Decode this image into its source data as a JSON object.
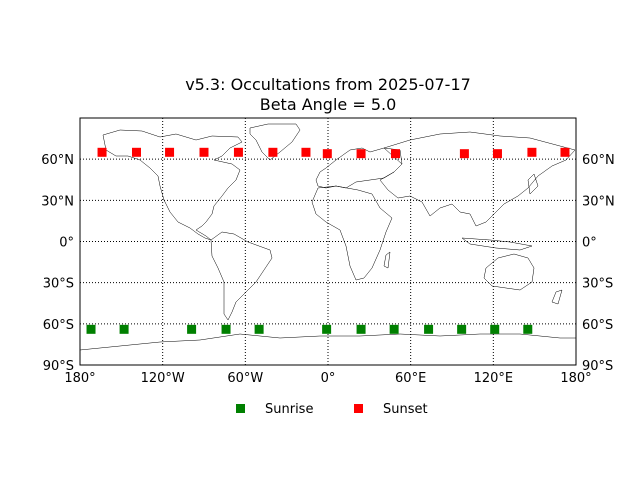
{
  "chart_data": {
    "type": "scatter",
    "title": "v5.3: Occultations from 2025-07-17",
    "subtitle": "Beta Angle = 5.0",
    "xlabel": "",
    "ylabel": "",
    "xlim": [
      -180,
      180
    ],
    "ylim": [
      -90,
      90
    ],
    "projection": "equirectangular world map with coastlines",
    "grid": true,
    "grid_style": "dotted",
    "x_ticks": [
      -180,
      -120,
      -60,
      0,
      60,
      120,
      180
    ],
    "x_tick_labels": [
      "180°",
      "120°W",
      "60°W",
      "0°",
      "60°E",
      "120°E",
      "180°"
    ],
    "y_ticks": [
      -90,
      -60,
      -30,
      0,
      30,
      60
    ],
    "y_tick_labels": [
      "90°S",
      "60°S",
      "30°S",
      "0°",
      "30°N",
      "60°N"
    ],
    "legend_position": "bottom-center",
    "series": [
      {
        "name": "Sunrise",
        "color": "#008000",
        "marker": "square",
        "x": [
          -172,
          -148,
          -99,
          -74,
          -50,
          -1,
          24,
          48,
          73,
          97,
          121,
          145
        ],
        "y": [
          -64,
          -64,
          -64,
          -64,
          -64,
          -64,
          -64,
          -64,
          -64,
          -64,
          -64,
          -64
        ]
      },
      {
        "name": "Sunset",
        "color": "#ff0000",
        "marker": "square",
        "x": [
          -164,
          -139,
          -115,
          -90,
          -65,
          -40,
          -16,
          -0.5,
          24,
          49,
          99,
          123,
          148,
          172
        ],
        "y": [
          65,
          65,
          65,
          65,
          65,
          65,
          65,
          64,
          64,
          64,
          64,
          64,
          65,
          65
        ]
      }
    ]
  }
}
